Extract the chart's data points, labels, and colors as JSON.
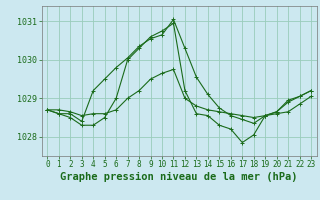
{
  "background_color": "#cce8f0",
  "grid_color": "#99ccbb",
  "line_color": "#1a6b1a",
  "marker": "+",
  "title": "Graphe pression niveau de la mer (hPa)",
  "title_fontsize": 7.5,
  "xlim": [
    -0.5,
    23.5
  ],
  "ylim": [
    1027.5,
    1031.4
  ],
  "yticks": [
    1028,
    1029,
    1030,
    1031
  ],
  "xticks": [
    0,
    1,
    2,
    3,
    4,
    5,
    6,
    7,
    8,
    9,
    10,
    11,
    12,
    13,
    14,
    15,
    16,
    17,
    18,
    19,
    20,
    21,
    22,
    23
  ],
  "series": [
    [
      1028.7,
      1028.7,
      1028.65,
      1028.55,
      1028.6,
      1028.6,
      1028.7,
      1029.0,
      1029.2,
      1029.5,
      1029.65,
      1029.75,
      1029.0,
      1028.8,
      1028.7,
      1028.65,
      1028.6,
      1028.55,
      1028.5,
      1028.55,
      1028.6,
      1028.65,
      1028.85,
      1029.05
    ],
    [
      1028.7,
      1028.6,
      1028.6,
      1028.4,
      1029.2,
      1029.5,
      1029.8,
      1030.05,
      1030.35,
      1030.55,
      1030.65,
      1031.05,
      1030.3,
      1029.55,
      1029.1,
      1028.75,
      1028.55,
      1028.45,
      1028.35,
      1028.55,
      1028.65,
      1028.9,
      1029.05,
      1029.2
    ],
    [
      1028.7,
      1028.6,
      1028.5,
      1028.3,
      1028.3,
      1028.5,
      1029.0,
      1030.0,
      1030.3,
      1030.6,
      1030.75,
      1030.95,
      1029.2,
      1028.6,
      1028.55,
      1028.3,
      1028.2,
      1027.85,
      1028.05,
      1028.55,
      1028.65,
      1028.95,
      1029.05,
      1029.2
    ]
  ]
}
